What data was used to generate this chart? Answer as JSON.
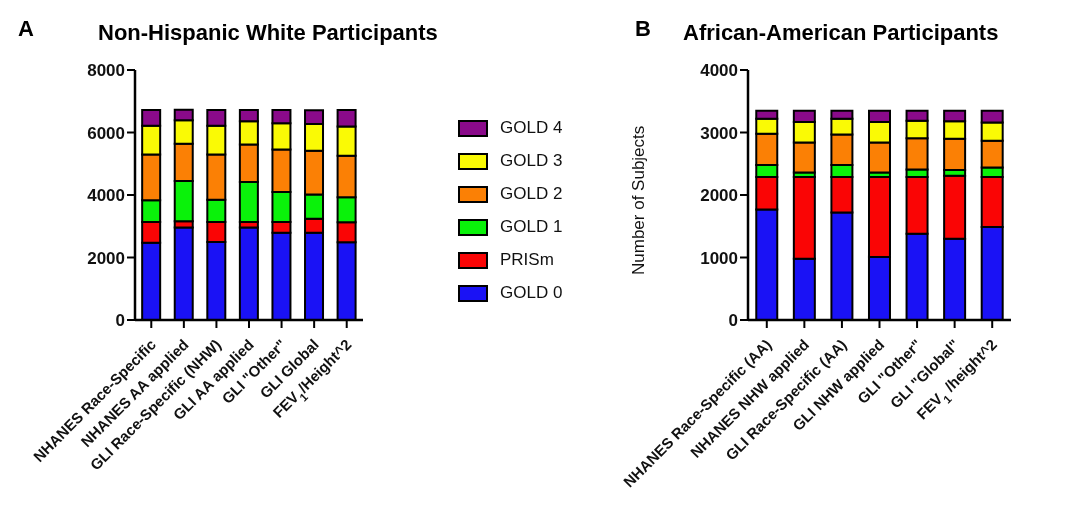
{
  "chart_data": [
    {
      "type": "bar",
      "stacked": true,
      "title": "Non-Hispanic White Participants",
      "annotations": [
        "A"
      ],
      "categories": [
        "NHANES Race-Specific",
        "NHANES AA applied",
        "GLI Race-Specific (NHW)",
        "GLI AA applied",
        "GLI \"Other\"",
        "GLI Global",
        "FEV$_{1}$/Height^2"
      ],
      "series": [
        {
          "name": "GOLD 0",
          "color": "#1a12f5",
          "values": [
            2470,
            2960,
            2500,
            2960,
            2790,
            2790,
            2490
          ]
        },
        {
          "name": "PRISm",
          "color": "#fa0505",
          "values": [
            670,
            200,
            640,
            180,
            350,
            450,
            640
          ]
        },
        {
          "name": "GOLD 1",
          "color": "#0af20a",
          "values": [
            690,
            1290,
            710,
            1280,
            960,
            780,
            800
          ]
        },
        {
          "name": "GOLD 2",
          "color": "#fb8005",
          "values": [
            1470,
            1190,
            1450,
            1200,
            1360,
            1400,
            1330
          ]
        },
        {
          "name": "GOLD 3",
          "color": "#fafa05",
          "values": [
            920,
            750,
            920,
            740,
            840,
            850,
            930
          ]
        },
        {
          "name": "GOLD 4",
          "color": "#8a0a8a",
          "values": [
            500,
            340,
            500,
            360,
            420,
            440,
            530
          ]
        }
      ],
      "ylim": [
        0,
        8000
      ],
      "yticks": [
        0,
        2000,
        4000,
        6000,
        8000
      ],
      "grid": false,
      "legend": "right"
    },
    {
      "type": "bar",
      "stacked": true,
      "title": "African-American Participants",
      "annotations": [
        "B"
      ],
      "ylabel": "Number of Subjects",
      "categories": [
        "NHANES Race-Specific (AA)",
        "NHANES NHW applied",
        "GLI Race-Specific (AA)",
        "GLI NHW applied",
        "GLI \"Other\"",
        "GLI \"Global\"",
        "FEV$_{1}$ /height^2"
      ],
      "series": [
        {
          "color": "#1a12f5",
          "values": [
            1770,
            980,
            1720,
            1010,
            1380,
            1300,
            1490
          ]
        },
        {
          "color": "#fa0505",
          "values": [
            520,
            1310,
            570,
            1280,
            910,
            1010,
            800
          ]
        },
        {
          "color": "#0af20a",
          "values": [
            190,
            70,
            190,
            70,
            120,
            90,
            150
          ]
        },
        {
          "color": "#fb8005",
          "values": [
            500,
            480,
            490,
            480,
            500,
            500,
            430
          ]
        },
        {
          "color": "#fafa05",
          "values": [
            240,
            330,
            250,
            330,
            280,
            280,
            290
          ]
        },
        {
          "color": "#8a0a8a",
          "values": [
            130,
            180,
            130,
            180,
            160,
            170,
            190
          ]
        }
      ],
      "ylim": [
        0,
        4000
      ],
      "yticks": [
        0,
        1000,
        2000,
        3000,
        4000
      ],
      "grid": false
    }
  ]
}
